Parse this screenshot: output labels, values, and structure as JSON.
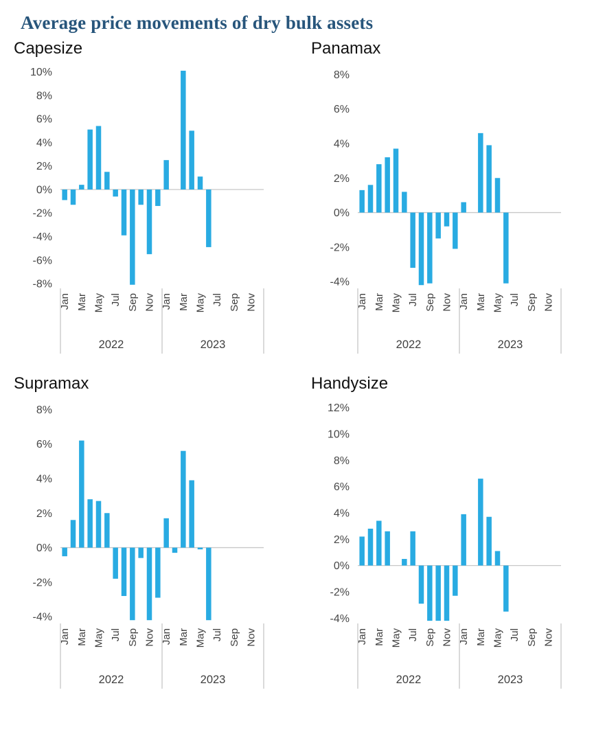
{
  "page": {
    "title": "Average price movements of dry bulk assets",
    "title_color": "#27557B",
    "background": "#FFFFFF",
    "bar_color": "#29ABE2"
  },
  "chart_data": [
    {
      "type": "bar",
      "title": "Capesize",
      "unit": "%",
      "bar_color": "#29ABE2",
      "axis_color": "#C8C8C8",
      "label_color": "#3F3F3F",
      "legend": "none",
      "grid": "zero-line-only",
      "year_labels": [
        "2022",
        "2023"
      ],
      "categories": [
        "Jan",
        "Feb",
        "Mar",
        "Apr",
        "May",
        "Jun",
        "Jul",
        "Aug",
        "Sep",
        "Oct",
        "Nov",
        "Dec",
        "Jan",
        "Feb",
        "Mar",
        "Apr",
        "May",
        "Jun",
        "Jul",
        "Aug",
        "Sep",
        "Oct",
        "Nov",
        "Dec"
      ],
      "values": [
        -0.9,
        -1.3,
        0.4,
        5.1,
        5.4,
        1.5,
        -0.6,
        -3.9,
        -8.1,
        -1.3,
        -5.5,
        -1.4,
        2.5,
        0,
        10.1,
        5.0,
        1.1,
        -4.9,
        null,
        null,
        null,
        null,
        null,
        null
      ],
      "yticks": [
        10,
        8,
        6,
        4,
        2,
        0,
        -2,
        -4,
        -6,
        -8
      ],
      "ylim": [
        -8.35,
        10.45
      ]
    },
    {
      "type": "bar",
      "title": "Panamax",
      "unit": "%",
      "bar_color": "#29ABE2",
      "axis_color": "#C8C8C8",
      "label_color": "#3F3F3F",
      "legend": "none",
      "grid": "zero-line-only",
      "year_labels": [
        "2022",
        "2023"
      ],
      "categories": [
        "Jan",
        "Feb",
        "Mar",
        "Apr",
        "May",
        "Jun",
        "Jul",
        "Aug",
        "Sep",
        "Oct",
        "Nov",
        "Dec",
        "Jan",
        "Feb",
        "Mar",
        "Apr",
        "May",
        "Jun",
        "Jul",
        "Aug",
        "Sep",
        "Oct",
        "Nov",
        "Dec"
      ],
      "values": [
        1.3,
        1.6,
        2.8,
        3.2,
        3.7,
        1.2,
        -3.2,
        -4.2,
        -4.1,
        -1.5,
        -0.8,
        -2.1,
        0.6,
        0,
        4.6,
        3.9,
        2.0,
        -4.1,
        null,
        null,
        null,
        null,
        null,
        null
      ],
      "yticks": [
        8,
        6,
        4,
        2,
        0,
        -2,
        -4
      ],
      "ylim": [
        -4.35,
        8.45
      ]
    },
    {
      "type": "bar",
      "title": "Supramax",
      "unit": "%",
      "bar_color": "#29ABE2",
      "axis_color": "#C8C8C8",
      "label_color": "#3F3F3F",
      "legend": "none",
      "grid": "zero-line-only",
      "year_labels": [
        "2022",
        "2023"
      ],
      "categories": [
        "Jan",
        "Feb",
        "Mar",
        "Apr",
        "May",
        "Jun",
        "Jul",
        "Aug",
        "Sep",
        "Oct",
        "Nov",
        "Dec",
        "Jan",
        "Feb",
        "Mar",
        "Apr",
        "May",
        "Jun",
        "Jul",
        "Aug",
        "Sep",
        "Oct",
        "Nov",
        "Dec"
      ],
      "values": [
        -0.5,
        1.6,
        6.2,
        2.8,
        2.7,
        2.0,
        -1.8,
        -2.8,
        -4.2,
        -0.6,
        -4.2,
        -2.9,
        1.7,
        -0.3,
        5.6,
        3.9,
        -0.1,
        -4.2,
        null,
        null,
        null,
        null,
        null,
        null
      ],
      "yticks": [
        8,
        6,
        4,
        2,
        0,
        -2,
        -4
      ],
      "ylim": [
        -4.35,
        8.45
      ]
    },
    {
      "type": "bar",
      "title": "Handysize",
      "unit": "%",
      "bar_color": "#29ABE2",
      "axis_color": "#C8C8C8",
      "label_color": "#3F3F3F",
      "legend": "none",
      "grid": "zero-line-only",
      "year_labels": [
        "2022",
        "2023"
      ],
      "categories": [
        "Jan",
        "Feb",
        "Mar",
        "Apr",
        "May",
        "Jun",
        "Jul",
        "Aug",
        "Sep",
        "Oct",
        "Nov",
        "Dec",
        "Jan",
        "Feb",
        "Mar",
        "Apr",
        "May",
        "Jun",
        "Jul",
        "Aug",
        "Sep",
        "Oct",
        "Nov",
        "Dec"
      ],
      "values": [
        2.2,
        2.8,
        3.4,
        2.6,
        0,
        0.5,
        2.6,
        -2.9,
        -4.2,
        -4.2,
        -4.2,
        -2.3,
        3.9,
        0,
        6.6,
        3.7,
        1.1,
        -3.5,
        null,
        null,
        null,
        null,
        null,
        null
      ],
      "yticks": [
        12,
        10,
        8,
        6,
        4,
        2,
        0,
        -2,
        -4
      ],
      "ylim": [
        -4.35,
        12.45
      ]
    }
  ]
}
